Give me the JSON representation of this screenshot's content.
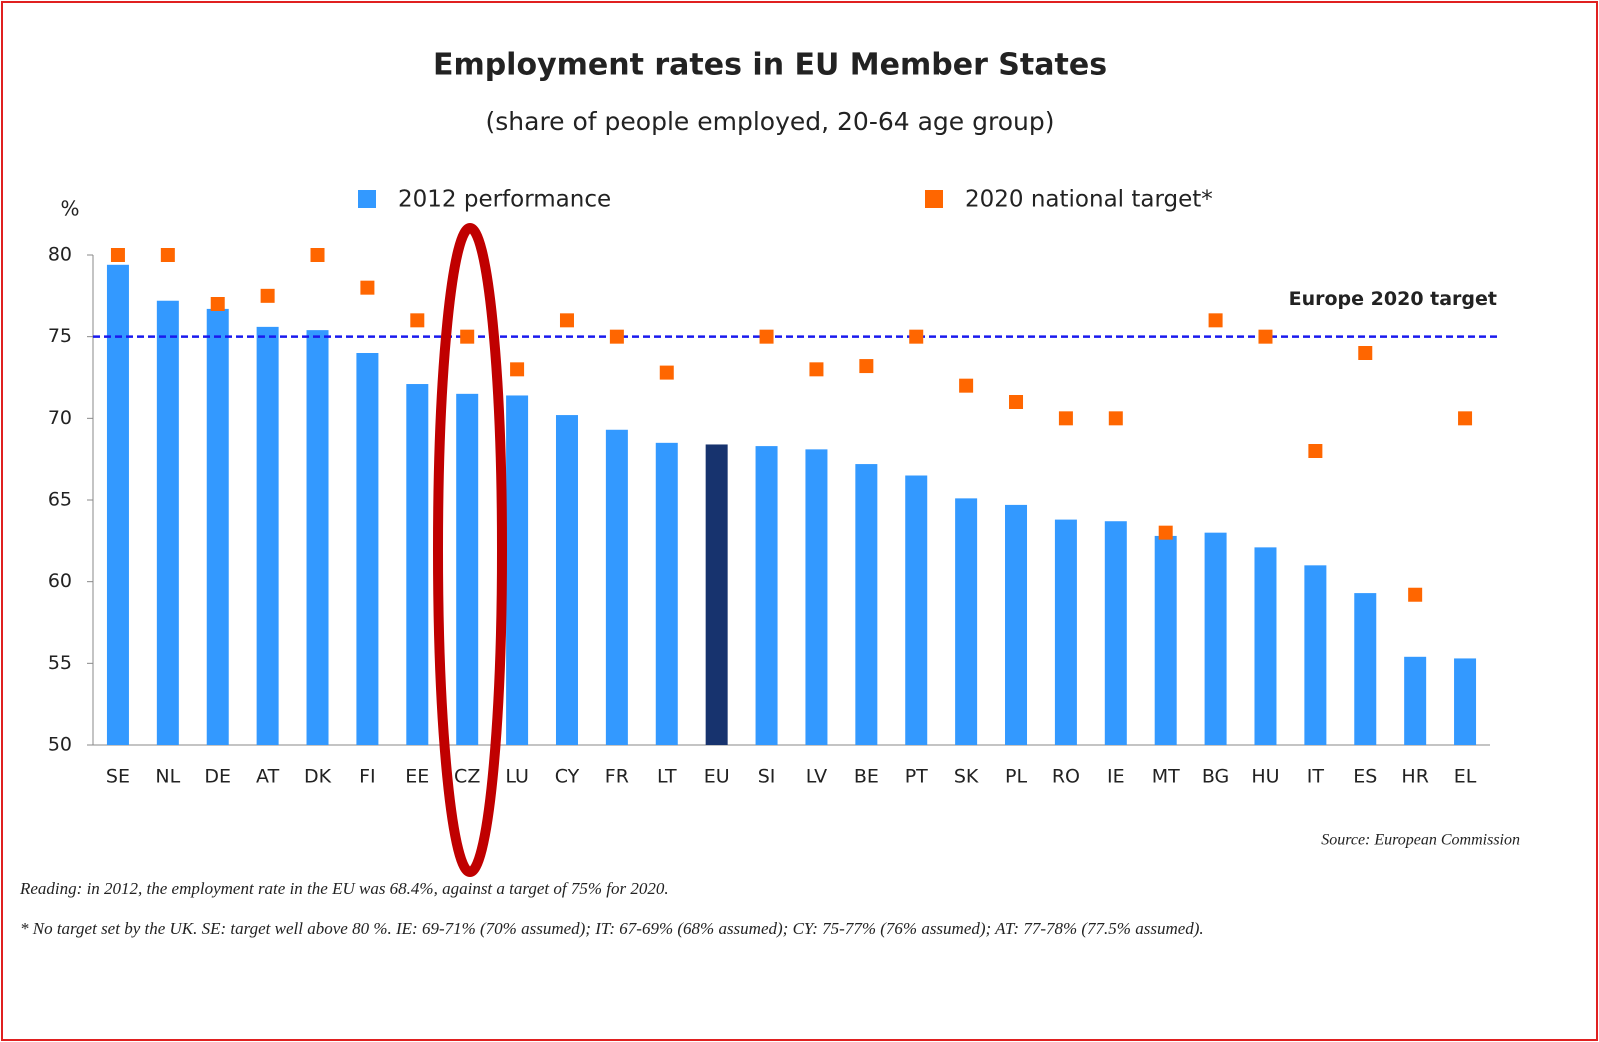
{
  "chart_data": {
    "type": "bar",
    "title": "Employment rates in EU Member States",
    "subtitle": "(share of people employed, 20-64 age group)",
    "y_label": "%",
    "categories": [
      "SE",
      "NL",
      "DE",
      "AT",
      "DK",
      "FI",
      "EE",
      "CZ",
      "LU",
      "CY",
      "FR",
      "LT",
      "EU",
      "SI",
      "LV",
      "BE",
      "PT",
      "SK",
      "PL",
      "RO",
      "IE",
      "MT",
      "BG",
      "HU",
      "IT",
      "ES",
      "HR",
      "EL"
    ],
    "series": [
      {
        "name": "2012 performance",
        "type": "bar",
        "color": "#3399ff",
        "colors": [
          "#3399ff",
          "#3399ff",
          "#3399ff",
          "#3399ff",
          "#3399ff",
          "#3399ff",
          "#3399ff",
          "#3399ff",
          "#3399ff",
          "#3399ff",
          "#3399ff",
          "#3399ff",
          "#17336e",
          "#3399ff",
          "#3399ff",
          "#3399ff",
          "#3399ff",
          "#3399ff",
          "#3399ff",
          "#3399ff",
          "#3399ff",
          "#3399ff",
          "#3399ff",
          "#3399ff",
          "#3399ff",
          "#3399ff",
          "#3399ff",
          "#3399ff"
        ],
        "values": [
          79.4,
          77.2,
          76.7,
          75.6,
          75.4,
          74.0,
          72.1,
          71.5,
          71.4,
          70.2,
          69.3,
          68.5,
          68.4,
          68.3,
          68.1,
          67.2,
          66.5,
          65.1,
          64.7,
          63.8,
          63.7,
          62.8,
          63.0,
          62.1,
          61.0,
          59.3,
          55.4,
          55.3
        ]
      },
      {
        "name": "2020 national target*",
        "type": "scatter",
        "color": "#ff6600",
        "values": [
          80,
          80,
          77,
          77.5,
          80,
          78,
          76,
          75,
          73,
          76,
          75,
          72.8,
          null,
          75,
          73,
          73.2,
          75,
          72,
          71,
          70,
          70,
          63,
          76,
          75,
          68,
          74,
          59.2,
          70
        ]
      }
    ],
    "reference_line": {
      "value": 75,
      "label": "Europe 2020 target",
      "color": "#1a1aee"
    },
    "ylim": [
      50,
      80
    ],
    "yticks": [
      50,
      55,
      60,
      65,
      70,
      75,
      80
    ],
    "source": "Source: European Commission",
    "notes": [
      "Reading: in 2012, the employment rate in the EU was 68.4%, against a target of 75% for 2020.",
      "* No target set by the UK. SE: target well above 80 %. IE: 69-71% (70% assumed); IT: 67-69% (68% assumed); CY: 75-77% (76% assumed); AT: 77-78% (77.5% assumed)."
    ]
  }
}
